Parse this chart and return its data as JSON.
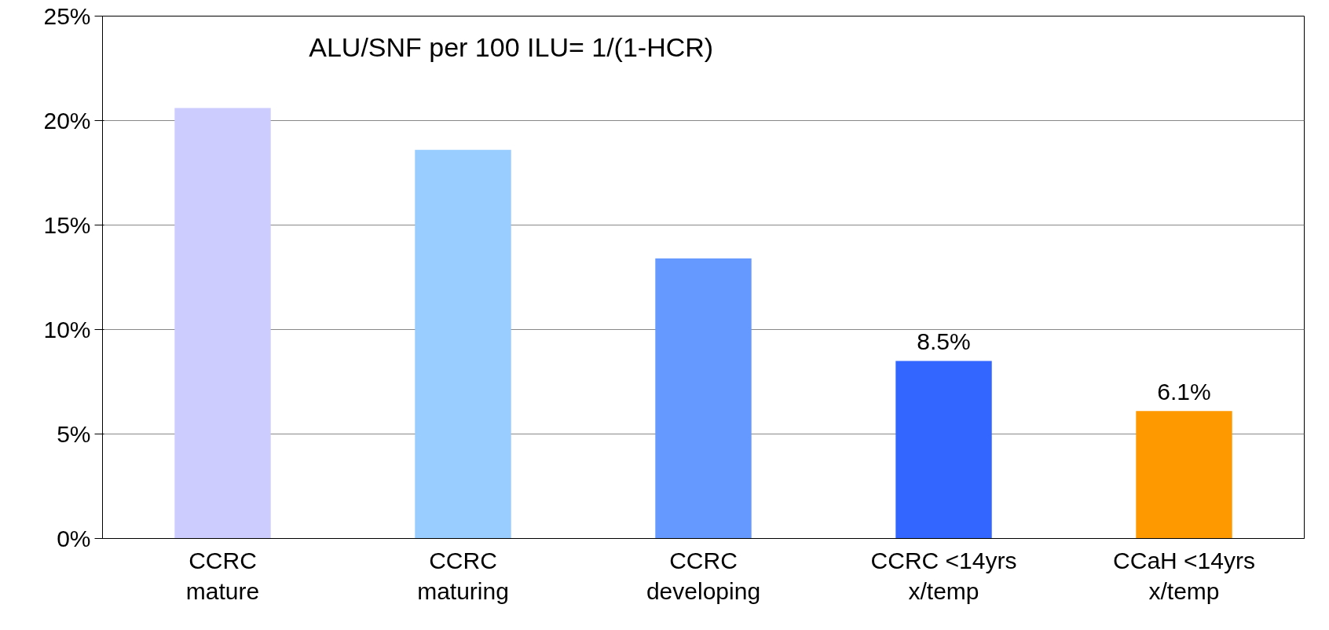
{
  "chart_data": {
    "type": "bar",
    "title": "ALU/SNF per 100 ILU= 1/(1-HCR)",
    "categories": [
      "CCRC\nmature",
      "CCRC\nmaturing",
      "CCRC\ndeveloping",
      "CCRC <14yrs\nx/temp",
      "CCaH <14yrs\nx/temp"
    ],
    "values": [
      20.6,
      18.6,
      13.4,
      8.5,
      6.1
    ],
    "colors": [
      "#ccccff",
      "#99ccff",
      "#6699ff",
      "#3366ff",
      "#ff9900"
    ],
    "value_labels": [
      null,
      null,
      null,
      "8.5%",
      "6.1%"
    ],
    "ylim": [
      0,
      25
    ],
    "yticks": [
      {
        "value": 0,
        "label": "0%"
      },
      {
        "value": 5,
        "label": "5%"
      },
      {
        "value": 10,
        "label": "10%"
      },
      {
        "value": 15,
        "label": "15%"
      },
      {
        "value": 20,
        "label": "20%"
      },
      {
        "value": 25,
        "label": "25%"
      }
    ],
    "grid": "y"
  }
}
